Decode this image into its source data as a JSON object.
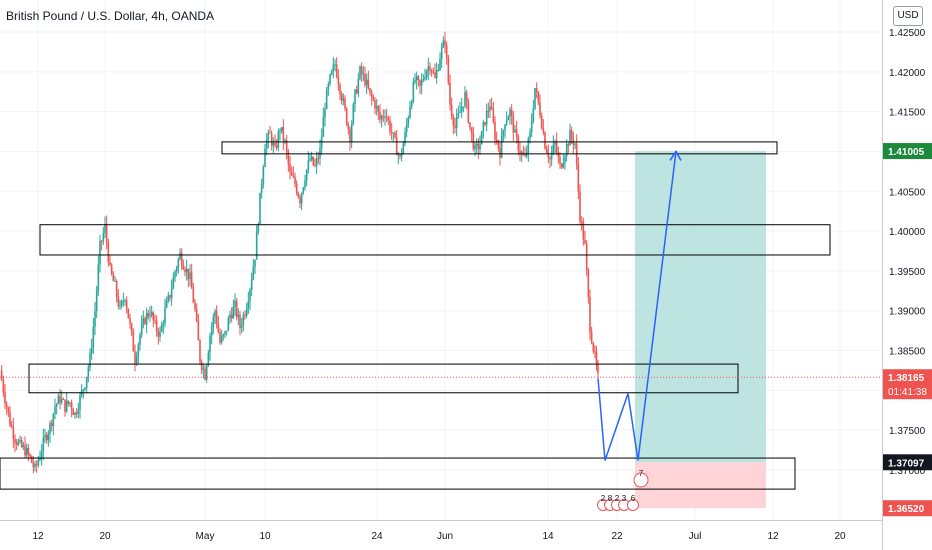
{
  "header": {
    "title": "British Pound / U.S. Dollar, 4h, OANDA",
    "currency": "USD"
  },
  "colors": {
    "up": "#26a69a",
    "down": "#ef5350",
    "projection": "#2962ff",
    "target_zone": "#b2dfdb",
    "stop_zone": "#ffcdd2",
    "grid": "#f0f3fa"
  },
  "price_tags": {
    "target": "1.41005",
    "current": "1.38165",
    "countdown": "01:41:38",
    "entry": "1.37097",
    "stop": "1.36520"
  },
  "chart_data": {
    "type": "candlestick",
    "title": "British Pound / U.S. Dollar, 4h, OANDA",
    "y_axis": {
      "range": [
        1.3625,
        1.4265
      ],
      "ticks": [
        "1.42500",
        "1.42000",
        "1.41500",
        "1.41000",
        "1.40500",
        "1.40000",
        "1.39500",
        "1.39000",
        "1.38500",
        "1.38000",
        "1.37500",
        "1.37000"
      ]
    },
    "x_axis": {
      "ticks": [
        "12",
        "20",
        "May",
        "10",
        "24",
        "Jun",
        "14",
        "22",
        "Jul",
        "12",
        "20"
      ]
    },
    "price_path": [
      [
        0,
        1.3825
      ],
      [
        5,
        1.379
      ],
      [
        10,
        1.376
      ],
      [
        15,
        1.374
      ],
      [
        20,
        1.373
      ],
      [
        25,
        1.3725
      ],
      [
        30,
        1.3715
      ],
      [
        35,
        1.37
      ],
      [
        40,
        1.372
      ],
      [
        45,
        1.374
      ],
      [
        50,
        1.3755
      ],
      [
        55,
        1.378
      ],
      [
        60,
        1.379
      ],
      [
        65,
        1.378
      ],
      [
        70,
        1.3785
      ],
      [
        75,
        1.377
      ],
      [
        80,
        1.379
      ],
      [
        85,
        1.381
      ],
      [
        90,
        1.384
      ],
      [
        95,
        1.39
      ],
      [
        100,
        1.398
      ],
      [
        105,
        1.4005
      ],
      [
        110,
        1.395
      ],
      [
        115,
        1.393
      ],
      [
        120,
        1.39
      ],
      [
        125,
        1.392
      ],
      [
        130,
        1.388
      ],
      [
        135,
        1.384
      ],
      [
        140,
        1.387
      ],
      [
        145,
        1.389
      ],
      [
        150,
        1.39
      ],
      [
        155,
        1.388
      ],
      [
        160,
        1.387
      ],
      [
        165,
        1.39
      ],
      [
        170,
        1.392
      ],
      [
        175,
        1.395
      ],
      [
        180,
        1.397
      ],
      [
        185,
        1.3955
      ],
      [
        190,
        1.394
      ],
      [
        195,
        1.39
      ],
      [
        200,
        1.384
      ],
      [
        205,
        1.382
      ],
      [
        210,
        1.387
      ],
      [
        215,
        1.39
      ],
      [
        220,
        1.386
      ],
      [
        225,
        1.387
      ],
      [
        230,
        1.3895
      ],
      [
        235,
        1.3905
      ],
      [
        240,
        1.388
      ],
      [
        245,
        1.39
      ],
      [
        250,
        1.393
      ],
      [
        255,
        1.397
      ],
      [
        260,
        1.404
      ],
      [
        265,
        1.411
      ],
      [
        270,
        1.412
      ],
      [
        275,
        1.41
      ],
      [
        280,
        1.413
      ],
      [
        285,
        1.411
      ],
      [
        290,
        1.407
      ],
      [
        295,
        1.406
      ],
      [
        300,
        1.404
      ],
      [
        305,
        1.407
      ],
      [
        310,
        1.409
      ],
      [
        315,
        1.408
      ],
      [
        320,
        1.41
      ],
      [
        325,
        1.416
      ],
      [
        330,
        1.419
      ],
      [
        335,
        1.421
      ],
      [
        340,
        1.418
      ],
      [
        345,
        1.415
      ],
      [
        350,
        1.412
      ],
      [
        355,
        1.417
      ],
      [
        360,
        1.42
      ],
      [
        365,
        1.419
      ],
      [
        370,
        1.417
      ],
      [
        375,
        1.416
      ],
      [
        380,
        1.414
      ],
      [
        385,
        1.415
      ],
      [
        390,
        1.413
      ],
      [
        395,
        1.411
      ],
      [
        400,
        1.409
      ],
      [
        405,
        1.412
      ],
      [
        410,
        1.416
      ],
      [
        415,
        1.419
      ],
      [
        420,
        1.418
      ],
      [
        425,
        1.42
      ],
      [
        430,
        1.421
      ],
      [
        435,
        1.419
      ],
      [
        440,
        1.422
      ],
      [
        445,
        1.424
      ],
      [
        450,
        1.416
      ],
      [
        455,
        1.413
      ],
      [
        460,
        1.415
      ],
      [
        465,
        1.417
      ],
      [
        470,
        1.413
      ],
      [
        475,
        1.41
      ],
      [
        480,
        1.411
      ],
      [
        485,
        1.414
      ],
      [
        490,
        1.416
      ],
      [
        495,
        1.412
      ],
      [
        500,
        1.41
      ],
      [
        505,
        1.414
      ],
      [
        510,
        1.415
      ],
      [
        515,
        1.412
      ],
      [
        520,
        1.41
      ],
      [
        525,
        1.409
      ],
      [
        530,
        1.412
      ],
      [
        535,
        1.418
      ],
      [
        540,
        1.415
      ],
      [
        545,
        1.411
      ],
      [
        550,
        1.409
      ],
      [
        555,
        1.411
      ],
      [
        560,
        1.408
      ],
      [
        565,
        1.41
      ],
      [
        570,
        1.412
      ],
      [
        575,
        1.411
      ],
      [
        580,
        1.402
      ],
      [
        585,
        1.398
      ],
      [
        590,
        1.388
      ],
      [
        595,
        1.384
      ],
      [
        598,
        1.3815
      ]
    ],
    "zones": [
      {
        "from": 1.4112,
        "to": 1.4097
      },
      {
        "from": 1.4008,
        "to": 1.397
      },
      {
        "from": 1.3833,
        "to": 1.3797
      },
      {
        "from": 1.3715,
        "to": 1.3676
      }
    ],
    "projection": [
      [
        598,
        1.3815
      ],
      [
        605,
        1.3712
      ],
      [
        628,
        1.3796
      ],
      [
        638,
        1.3712
      ],
      [
        676,
        1.41
      ]
    ],
    "position": {
      "target": 1.41005,
      "entry": 1.37097,
      "stop": 1.3652
    },
    "current_price": 1.38165,
    "event_markers": [
      "7",
      "2",
      "8",
      "2",
      "3",
      "6"
    ]
  }
}
